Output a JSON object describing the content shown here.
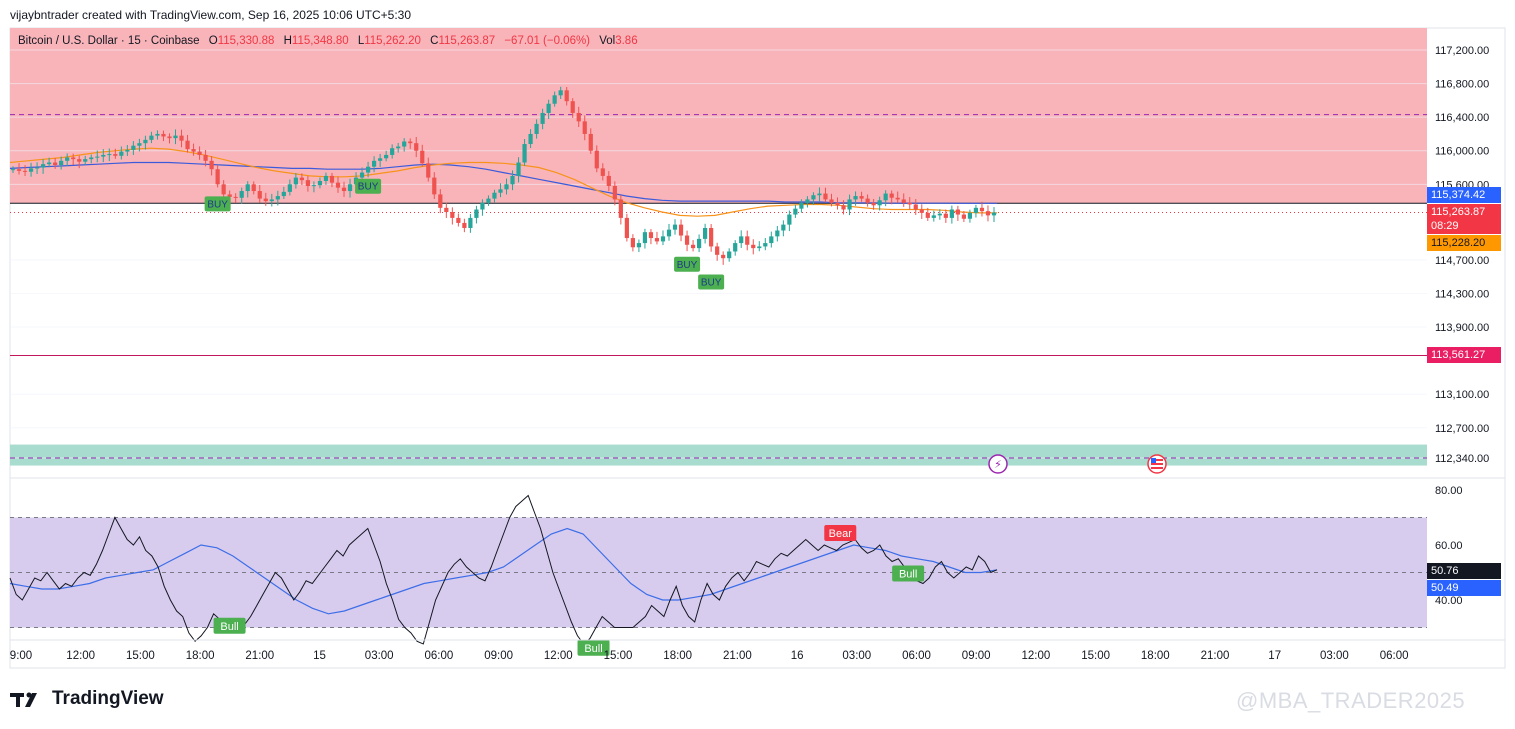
{
  "header": {
    "text": "vijaybntrader created with TradingView.com, Sep 16, 2025 10:06 UTC+5:30"
  },
  "symbol": {
    "name": "Bitcoin / U.S. Dollar · 15 · Coinbase",
    "o_label": "O",
    "o": "115,330.88",
    "h_label": "H",
    "h": "115,348.80",
    "l_label": "L",
    "l": "115,262.20",
    "c_label": "C",
    "c": "115,263.87",
    "change": "−67.01 (−0.06%)",
    "vol_label": "Vol",
    "vol": "3.86"
  },
  "brand": {
    "name": "TradingView"
  },
  "watermark": "@MBA_TRADER2025",
  "colors": {
    "up": "#26a69a",
    "down": "#ef5350",
    "supply_zone": "#f8b4b9",
    "demand_zone": "#a8dccf",
    "rsi_band": "#d8ccee",
    "ma_orange": "#f7931a",
    "ma_blue": "#3b5bdb",
    "rsi_line": "#131722",
    "rsi_ma": "#3d6ee8"
  },
  "price_labels": {
    "current_high": "115,374.42",
    "current": "115,263.87",
    "countdown": "08:29",
    "ma": "115,228.20",
    "level": "113,561.27"
  },
  "rsi_labels": {
    "rsi": "50.76",
    "rsi_ma": "50.49"
  },
  "chart_data": [
    {
      "type": "candlestick",
      "title": "Bitcoin / U.S. Dollar · 15 · Coinbase",
      "y_axis_ticks": [
        117200,
        116800,
        116400,
        116000,
        115600,
        114700,
        114300,
        113900,
        113100,
        112700,
        112340
      ],
      "y_axis_tick_labels": [
        "117,200.00",
        "116,800.00",
        "116,400.00",
        "116,000.00",
        "115,600.00",
        "114,700.00",
        "114,300.00",
        "113,900.00",
        "113,100.00",
        "112,700.00",
        "112,340.00"
      ],
      "x_axis_tick_labels": [
        "9:00",
        "12:00",
        "15:00",
        "18:00",
        "21:00",
        "15",
        "03:00",
        "06:00",
        "09:00",
        "12:00",
        "15:00",
        "18:00",
        "21:00",
        "16",
        "03:00",
        "06:00",
        "09:00",
        "12:00",
        "15:00",
        "18:00",
        "21:00",
        "17",
        "03:00",
        "06:00"
      ],
      "ylim": [
        112000,
        117500
      ],
      "zones": [
        {
          "name": "supply",
          "from": 115374.42,
          "to": 117500
        },
        {
          "name": "demand",
          "from": 112250,
          "to": 112500
        }
      ],
      "levels": [
        {
          "value": 116430,
          "style": "dashed"
        },
        {
          "value": 115374.42,
          "style": "solid"
        },
        {
          "value": 115263.87,
          "style": "dotted"
        },
        {
          "value": 113561.27,
          "style": "solid"
        },
        {
          "value": 112340,
          "style": "dashed"
        }
      ],
      "signals": [
        {
          "label": "BUY",
          "index": 34
        },
        {
          "label": "BUY",
          "index": 59
        },
        {
          "label": "BUY",
          "index": 112
        },
        {
          "label": "BUY",
          "index": 116
        }
      ],
      "close_series": [
        115780,
        115760,
        115750,
        115790,
        115800,
        115840,
        115860,
        115830,
        115880,
        115920,
        115900,
        115870,
        115900,
        115920,
        115930,
        115950,
        115960,
        115940,
        115990,
        116010,
        116060,
        116090,
        116130,
        116180,
        116200,
        116170,
        116150,
        116180,
        116120,
        116020,
        115990,
        115950,
        115880,
        115780,
        115600,
        115480,
        115450,
        115440,
        115520,
        115600,
        115520,
        115430,
        115400,
        115420,
        115460,
        115510,
        115600,
        115680,
        115650,
        115580,
        115590,
        115640,
        115700,
        115620,
        115560,
        115520,
        115600,
        115680,
        115740,
        115810,
        115880,
        115910,
        115950,
        116030,
        116050,
        116110,
        116090,
        116000,
        115850,
        115680,
        115480,
        115320,
        115270,
        115200,
        115140,
        115080,
        115200,
        115300,
        115380,
        115430,
        115500,
        115540,
        115600,
        115700,
        115860,
        116080,
        116200,
        116320,
        116450,
        116560,
        116660,
        116720,
        116590,
        116450,
        116350,
        116200,
        116000,
        115790,
        115700,
        115580,
        115420,
        115200,
        114960,
        114850,
        114900,
        115030,
        114960,
        114920,
        114980,
        115060,
        115120,
        114990,
        114880,
        114840,
        114950,
        115080,
        114860,
        114760,
        114720,
        114800,
        114900,
        114980,
        114880,
        114840,
        114860,
        114900,
        114980,
        115050,
        115120,
        115240,
        115310,
        115380,
        115420,
        115470,
        115490,
        115420,
        115380,
        115350,
        115300,
        115420,
        115460,
        115430,
        115380,
        115350,
        115410,
        115490,
        115440,
        115420,
        115380,
        115360,
        115300,
        115260,
        115200,
        115230,
        115250,
        115200,
        115300,
        115240,
        115190,
        115260,
        115320,
        115280,
        115230,
        115263
      ],
      "ma_orange": [
        115860,
        115880,
        115900,
        115920,
        115950,
        115980,
        116000,
        116020,
        116030,
        116020,
        115990,
        115950,
        115900,
        115850,
        115800,
        115760,
        115730,
        115700,
        115690,
        115690,
        115700,
        115730,
        115760,
        115800,
        115830,
        115850,
        115860,
        115860,
        115850,
        115830,
        115800,
        115740,
        115660,
        115560,
        115460,
        115380,
        115320,
        115270,
        115230,
        115220,
        115230,
        115270,
        115310,
        115340,
        115350,
        115360,
        115360,
        115350,
        115330,
        115310,
        115300,
        115300,
        115300,
        115290,
        115270,
        115260,
        115260
      ],
      "ma_blue": [
        115790,
        115800,
        115810,
        115820,
        115830,
        115840,
        115850,
        115860,
        115860,
        115860,
        115850,
        115840,
        115830,
        115820,
        115810,
        115800,
        115790,
        115790,
        115780,
        115780,
        115780,
        115790,
        115810,
        115830,
        115840,
        115830,
        115810,
        115780,
        115740,
        115700,
        115660,
        115620,
        115580,
        115540,
        115500,
        115460,
        115430,
        115410,
        115400,
        115400,
        115400,
        115400,
        115400,
        115400,
        115390,
        115390,
        115390,
        115380,
        115380,
        115380,
        115375,
        115375,
        115375,
        115375,
        115374,
        115374,
        115374
      ]
    },
    {
      "type": "line",
      "title": "RSI",
      "ylim": [
        20,
        80
      ],
      "y_axis_ticks": [
        80,
        60,
        40
      ],
      "y_axis_tick_labels": [
        "80.00",
        "60.00",
        "40.00"
      ],
      "band": [
        30,
        70
      ],
      "midline": 50,
      "series": [
        {
          "values": [
            48,
            42,
            40,
            44,
            48,
            47,
            50,
            47,
            44,
            46,
            45,
            48,
            50,
            49,
            53,
            58,
            64,
            70,
            66,
            62,
            60,
            63,
            58,
            56,
            52,
            45,
            40,
            36,
            34,
            28,
            25,
            27,
            30,
            35,
            33,
            30,
            32,
            29,
            31,
            34,
            38,
            42,
            46,
            50,
            48,
            44,
            40,
            43,
            47,
            46,
            49,
            52,
            55,
            58,
            56,
            60,
            62,
            64,
            66,
            60,
            54,
            46,
            40,
            33,
            30,
            28,
            25,
            24,
            32,
            40,
            45,
            50,
            53,
            55,
            52,
            50,
            48,
            47,
            52,
            58,
            64,
            70,
            74,
            76,
            78,
            72,
            66,
            58,
            50,
            44,
            38,
            32,
            27,
            24,
            26,
            30,
            34,
            32,
            30,
            30,
            30,
            30,
            32,
            34,
            38,
            36,
            34,
            40,
            45,
            38,
            34,
            32,
            40,
            46,
            42,
            40,
            45,
            48,
            50,
            47,
            50,
            54,
            53,
            52,
            55,
            57,
            56,
            58,
            60,
            62,
            60,
            58,
            60,
            59,
            58,
            60,
            61,
            62,
            59,
            57,
            58,
            60,
            56,
            54,
            55,
            52,
            50,
            47,
            46,
            48,
            52,
            54,
            50,
            48,
            50,
            52,
            51,
            56,
            54,
            50,
            51
          ]
        },
        {
          "values": [
            46,
            45,
            44,
            44,
            45,
            46,
            48,
            49,
            50,
            51,
            54,
            57,
            60,
            59,
            56,
            52,
            48,
            44,
            40,
            37,
            35,
            36,
            38,
            40,
            42,
            44,
            46,
            47,
            48,
            49,
            50,
            52,
            56,
            60,
            64,
            66,
            64,
            58,
            52,
            46,
            42,
            40,
            40,
            41,
            42,
            44,
            46,
            48,
            50,
            52,
            54,
            56,
            58,
            60,
            59,
            58,
            56,
            55,
            54,
            52,
            50,
            50,
            51
          ]
        }
      ],
      "signals": [
        {
          "label": "Bull",
          "index": 33
        },
        {
          "label": "Bull",
          "index": 92
        },
        {
          "label": "Bear",
          "index": 132
        },
        {
          "label": "Bull",
          "index": 143
        }
      ]
    }
  ]
}
